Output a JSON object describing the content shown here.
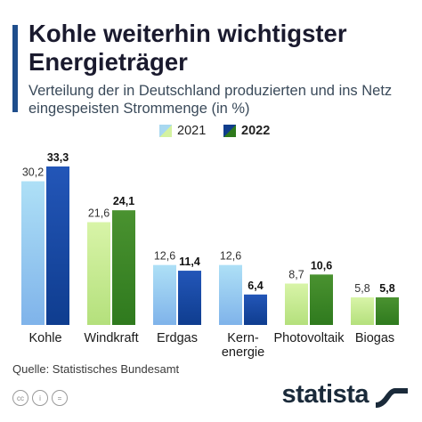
{
  "header": {
    "title": "Kohle weiterhin wichtigster Energieträger",
    "subtitle": "Verteilung der in Deutschland produzierten und ins Netz eingespeisten Strommenge (in %)"
  },
  "footer": {
    "source": "Quelle: Statistisches Bundesamt",
    "brand": "statista",
    "license_icons": [
      "cc",
      "by",
      "nd"
    ]
  },
  "colors": {
    "accent": "#1f4e8c",
    "series_2021_top": "#a8d8f0",
    "series_2021_bottom": "#6fa3e0",
    "series_2022_top": "#2050b0",
    "series_2022_bottom": "#103d8c",
    "wind_2021_top": "#d4f2a0",
    "wind_2021_bottom": "#a6dc6a",
    "wind_2022_top": "#4a8d2a",
    "wind_2022_bottom": "#2e7a1c"
  },
  "chart_data": {
    "type": "bar",
    "title": "Kohle weiterhin wichtigster Energieträger",
    "subtitle": "Verteilung der in Deutschland produzierten und ins Netz eingespeisten Strommenge (in %)",
    "categories": [
      "Kohle",
      "Windkraft",
      "Erdgas",
      "Kern-\nenergie",
      "Photovoltaik",
      "Biogas"
    ],
    "series": [
      {
        "name": "2021",
        "values": [
          30.2,
          21.6,
          12.6,
          12.6,
          8.7,
          5.8
        ],
        "labels": [
          "30,2",
          "21,6",
          "12,6",
          "12,6",
          "8,7",
          "5,8"
        ]
      },
      {
        "name": "2022",
        "values": [
          33.3,
          24.1,
          11.4,
          6.4,
          10.6,
          5.8
        ],
        "labels": [
          "33,3",
          "24,1",
          "11,4",
          "6,4",
          "10,6",
          "5,8"
        ]
      }
    ],
    "color_group": [
      "blue",
      "green",
      "blue",
      "blue",
      "green",
      "green"
    ],
    "ylim": [
      0,
      33.3
    ],
    "grid": false,
    "legend_placement": "top-center"
  }
}
